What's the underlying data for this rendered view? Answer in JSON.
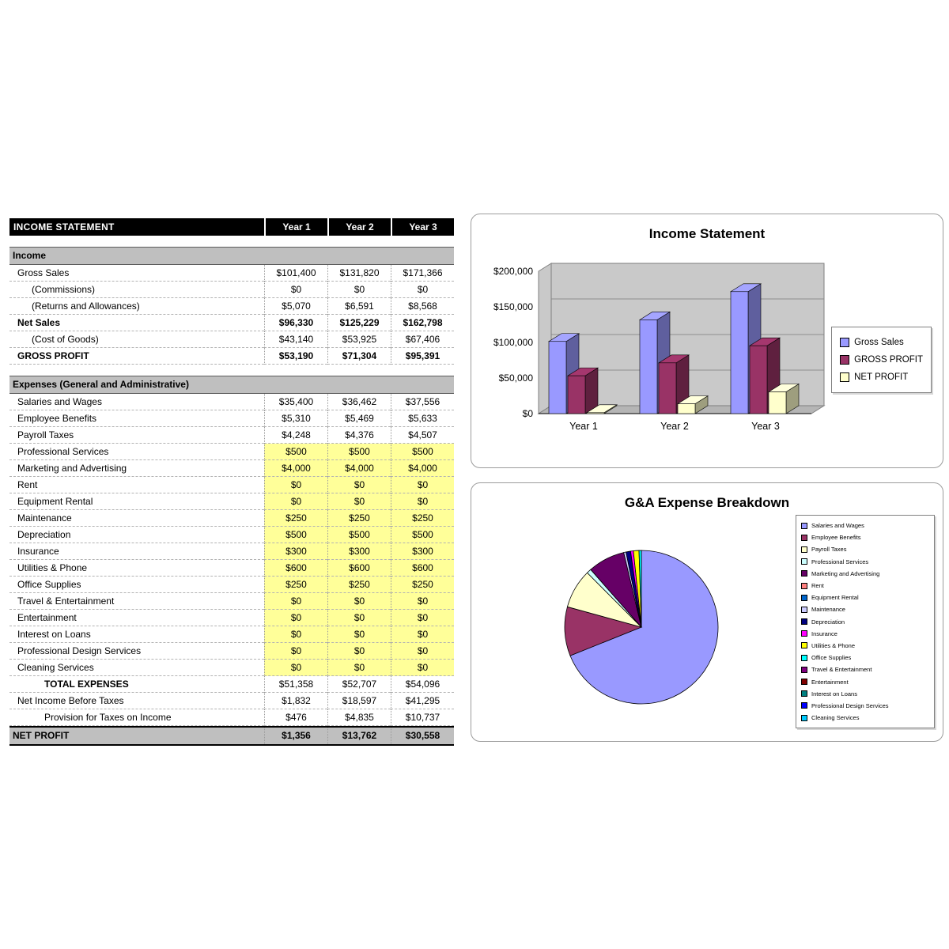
{
  "table": {
    "header": {
      "title": "INCOME STATEMENT",
      "columns": [
        "Year 1",
        "Year 2",
        "Year 3"
      ]
    },
    "rows": [
      {
        "type": "spacer"
      },
      {
        "type": "section",
        "label": "Income"
      },
      {
        "type": "item",
        "label": "Gross Sales",
        "values": [
          "$101,400",
          "$131,820",
          "$171,366"
        ]
      },
      {
        "type": "item",
        "indent": 2,
        "label": "(Commissions)",
        "values": [
          "$0",
          "$0",
          "$0"
        ]
      },
      {
        "type": "item",
        "indent": 2,
        "label": "(Returns and Allowances)",
        "values": [
          "$5,070",
          "$6,591",
          "$8,568"
        ]
      },
      {
        "type": "bold",
        "label": "Net Sales",
        "values": [
          "$96,330",
          "$125,229",
          "$162,798"
        ]
      },
      {
        "type": "item",
        "indent": 2,
        "label": "(Cost of Goods)",
        "values": [
          "$43,140",
          "$53,925",
          "$67,406"
        ]
      },
      {
        "type": "bold",
        "label": "GROSS PROFIT",
        "values": [
          "$53,190",
          "$71,304",
          "$95,391"
        ]
      },
      {
        "type": "spacer"
      },
      {
        "type": "section",
        "label": "Expenses (General and Administrative)"
      },
      {
        "type": "item",
        "label": "Salaries and Wages",
        "values": [
          "$35,400",
          "$36,462",
          "$37,556"
        ]
      },
      {
        "type": "item",
        "label": "Employee Benefits",
        "values": [
          "$5,310",
          "$5,469",
          "$5,633"
        ]
      },
      {
        "type": "item",
        "label": "Payroll Taxes",
        "values": [
          "$4,248",
          "$4,376",
          "$4,507"
        ]
      },
      {
        "type": "hl",
        "label": "Professional Services",
        "values": [
          "$500",
          "$500",
          "$500"
        ]
      },
      {
        "type": "hl",
        "label": "Marketing and Advertising",
        "values": [
          "$4,000",
          "$4,000",
          "$4,000"
        ]
      },
      {
        "type": "hl",
        "label": "Rent",
        "values": [
          "$0",
          "$0",
          "$0"
        ]
      },
      {
        "type": "hl",
        "label": "Equipment Rental",
        "values": [
          "$0",
          "$0",
          "$0"
        ]
      },
      {
        "type": "hl",
        "label": "Maintenance",
        "values": [
          "$250",
          "$250",
          "$250"
        ]
      },
      {
        "type": "hl",
        "label": "Depreciation",
        "values": [
          "$500",
          "$500",
          "$500"
        ]
      },
      {
        "type": "hl",
        "label": "Insurance",
        "values": [
          "$300",
          "$300",
          "$300"
        ]
      },
      {
        "type": "hl",
        "label": "Utilities & Phone",
        "values": [
          "$600",
          "$600",
          "$600"
        ]
      },
      {
        "type": "hl",
        "label": "Office Supplies",
        "values": [
          "$250",
          "$250",
          "$250"
        ]
      },
      {
        "type": "hl",
        "label": "Travel & Entertainment",
        "values": [
          "$0",
          "$0",
          "$0"
        ]
      },
      {
        "type": "hl",
        "label": "Entertainment",
        "values": [
          "$0",
          "$0",
          "$0"
        ]
      },
      {
        "type": "hl",
        "label": "Interest on Loans",
        "values": [
          "$0",
          "$0",
          "$0"
        ]
      },
      {
        "type": "hl",
        "label": "Professional Design Services",
        "values": [
          "$0",
          "$0",
          "$0"
        ]
      },
      {
        "type": "hl",
        "label": "Cleaning Services",
        "values": [
          "$0",
          "$0",
          "$0"
        ]
      },
      {
        "type": "total",
        "label": "TOTAL EXPENSES",
        "values": [
          "$51,358",
          "$52,707",
          "$54,096"
        ]
      },
      {
        "type": "item",
        "label": "Net Income Before Taxes",
        "values": [
          "$1,832",
          "$18,597",
          "$41,295"
        ]
      },
      {
        "type": "item",
        "indent": 3,
        "label": "Provision for Taxes on Income",
        "values": [
          "$476",
          "$4,835",
          "$10,737"
        ]
      },
      {
        "type": "np",
        "label": "NET PROFIT",
        "values": [
          "$1,356",
          "$13,762",
          "$30,558"
        ]
      }
    ]
  },
  "chart_data": [
    {
      "type": "bar",
      "title": "Income Statement",
      "categories": [
        "Year 1",
        "Year 2",
        "Year 3"
      ],
      "series": [
        {
          "name": "Gross Sales",
          "color": "#9999ff",
          "values": [
            101400,
            131820,
            171366
          ]
        },
        {
          "name": "GROSS PROFIT",
          "color": "#993366",
          "values": [
            53190,
            71304,
            95391
          ]
        },
        {
          "name": "NET PROFIT",
          "color": "#ffffcc",
          "values": [
            1356,
            13762,
            30558
          ]
        }
      ],
      "ylim": [
        0,
        200000
      ],
      "yticks": [
        "$0",
        "$50,000",
        "$100,000",
        "$150,000",
        "$200,000"
      ],
      "legend_position": "right",
      "grid": true,
      "style": "3d-clustered"
    },
    {
      "type": "pie",
      "title": "G&A Expense Breakdown",
      "labels": [
        "Salaries and Wages",
        "Employee Benefits",
        "Payroll Taxes",
        "Professional Services",
        "Marketing and Advertising",
        "Rent",
        "Equipment Rental",
        "Maintenance",
        "Depreciation",
        "Insurance",
        "Utilities & Phone",
        "Office Supplies",
        "Travel & Entertainment",
        "Entertainment",
        "Interest on Loans",
        "Professional Design Services",
        "Cleaning Services"
      ],
      "values": [
        35400,
        5310,
        4248,
        500,
        4000,
        0,
        0,
        250,
        500,
        300,
        600,
        250,
        0,
        0,
        0,
        0,
        0
      ],
      "colors": [
        "#9999ff",
        "#993366",
        "#ffffcc",
        "#ccffff",
        "#660066",
        "#ff8080",
        "#0066cc",
        "#ccccff",
        "#000080",
        "#ff00ff",
        "#ffff00",
        "#00ffff",
        "#800080",
        "#800000",
        "#008080",
        "#0000ff",
        "#00ccff"
      ],
      "legend_position": "right"
    }
  ]
}
